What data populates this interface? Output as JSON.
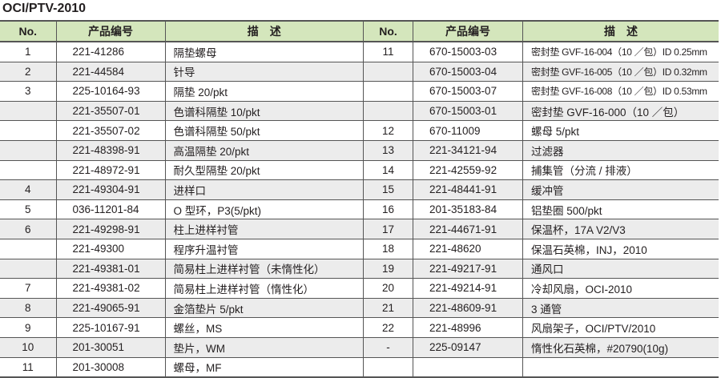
{
  "title": "OCI/PTV-2010",
  "headers": {
    "no": "No.",
    "code": "产品编号",
    "desc": "描　述"
  },
  "left_rows": [
    {
      "no": "1",
      "code": "221-41286",
      "desc": "隔垫螺母"
    },
    {
      "no": "2",
      "code": "221-44584",
      "desc": "针导"
    },
    {
      "no": "3",
      "code": "225-10164-93",
      "desc": "隔垫 20/pkt"
    },
    {
      "no": "",
      "code": "221-35507-01",
      "desc": "色谱科隔垫 10/pkt"
    },
    {
      "no": "",
      "code": "221-35507-02",
      "desc": "色谱科隔垫 50/pkt"
    },
    {
      "no": "",
      "code": "221-48398-91",
      "desc": "高温隔垫 20/pkt"
    },
    {
      "no": "",
      "code": "221-48972-91",
      "desc": "耐久型隔垫 20/pkt"
    },
    {
      "no": "4",
      "code": "221-49304-91",
      "desc": "进样口"
    },
    {
      "no": "5",
      "code": "036-11201-84",
      "desc": "O 型环，P3(5/pkt)"
    },
    {
      "no": "6",
      "code": "221-49298-91",
      "desc": "柱上进样衬管"
    },
    {
      "no": "",
      "code": "221-49300",
      "desc": "程序升温衬管"
    },
    {
      "no": "",
      "code": "221-49381-01",
      "desc": "简易柱上进样衬管（未惰性化）"
    },
    {
      "no": "7",
      "code": "221-49381-02",
      "desc": "简易柱上进样衬管（惰性化）"
    },
    {
      "no": "8",
      "code": "221-49065-91",
      "desc": "金箔垫片 5/pkt"
    },
    {
      "no": "9",
      "code": "225-10167-91",
      "desc": "螺丝，MS"
    },
    {
      "no": "10",
      "code": "201-30051",
      "desc": "垫片，WM"
    },
    {
      "no": "11",
      "code": "201-30008",
      "desc": "螺母，MF"
    }
  ],
  "right_rows": [
    {
      "no": "11",
      "code": "670-15003-03",
      "desc": "密封垫 GVF-16-004（10 ／包）ID 0.25mm"
    },
    {
      "no": "",
      "code": "670-15003-04",
      "desc": "密封垫 GVF-16-005（10 ／包）ID 0.32mm"
    },
    {
      "no": "",
      "code": "670-15003-07",
      "desc": "密封垫 GVF-16-008（10 ／包）ID 0.53mm"
    },
    {
      "no": "",
      "code": "670-15003-01",
      "desc": "密封垫 GVF-16-000（10 ／包）"
    },
    {
      "no": "12",
      "code": "670-11009",
      "desc": "螺母 5/pkt"
    },
    {
      "no": "13",
      "code": "221-34121-94",
      "desc": "过滤器"
    },
    {
      "no": "14",
      "code": "221-42559-92",
      "desc": "捕集管（分流 / 排液）"
    },
    {
      "no": "15",
      "code": "221-48441-91",
      "desc": "缓冲管"
    },
    {
      "no": "16",
      "code": "201-35183-84",
      "desc": "铝垫圈 500/pkt"
    },
    {
      "no": "17",
      "code": "221-44671-91",
      "desc": "保温杯，17A V2/V3"
    },
    {
      "no": "18",
      "code": "221-48620",
      "desc": "保温石英棉，INJ，2010"
    },
    {
      "no": "19",
      "code": "221-49217-91",
      "desc": "通风口"
    },
    {
      "no": "20",
      "code": "221-49214-91",
      "desc": "冷却风扇，OCI-2010"
    },
    {
      "no": "21",
      "code": "221-48609-91",
      "desc": "3 通管"
    },
    {
      "no": "22",
      "code": "221-48996",
      "desc": "风扇架子，OCI/PTV/2010"
    },
    {
      "no": "-",
      "code": "225-09147",
      "desc": "惰性化石英棉，#20790(10g)"
    },
    {
      "no": "",
      "code": "",
      "desc": ""
    }
  ],
  "colors": {
    "header_bg": "#d4e6bc",
    "alt_row_bg": "#ececec",
    "border": "#555555"
  }
}
